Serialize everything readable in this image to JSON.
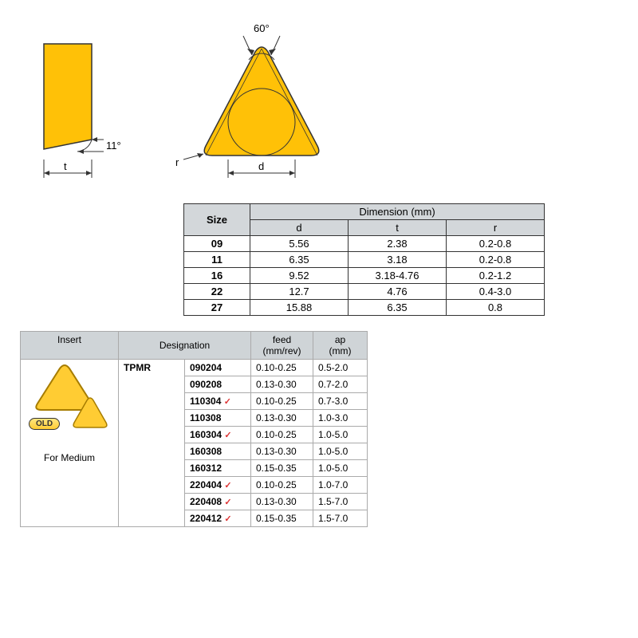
{
  "diagram": {
    "side": {
      "fill": "#ffc107",
      "stroke": "#333",
      "angle_label": "11°",
      "t_label": "t"
    },
    "top": {
      "fill": "#ffc107",
      "stroke": "#333",
      "apex_angle": "60°",
      "r_label": "r",
      "d_label": "d"
    }
  },
  "size_table": {
    "title_size": "Size",
    "title_dim": "Dimension (mm)",
    "cols": [
      "d",
      "t",
      "r"
    ],
    "rows": [
      {
        "size": "09",
        "d": "5.56",
        "t": "2.38",
        "r": "0.2-0.8"
      },
      {
        "size": "11",
        "d": "6.35",
        "t": "3.18",
        "r": "0.2-0.8"
      },
      {
        "size": "16",
        "d": "9.52",
        "t": "3.18-4.76",
        "r": "0.2-1.2"
      },
      {
        "size": "22",
        "d": "12.7",
        "t": "4.76",
        "r": "0.4-3.0"
      },
      {
        "size": "27",
        "d": "15.88",
        "t": "6.35",
        "r": "0.8"
      }
    ]
  },
  "insert_table": {
    "headers": {
      "insert": "Insert",
      "designation": "Designation",
      "feed": "feed\n(mm/rev)",
      "ap": "ap\n(mm)"
    },
    "insert_cell": {
      "old_label": "OLD",
      "caption": "For Medium",
      "triangle_fill": "#ffcc33",
      "triangle_stroke": "#a67c00"
    },
    "series": "TPMR",
    "rows": [
      {
        "code": "090204",
        "check": false,
        "feed": "0.10-0.25",
        "ap": "0.5-2.0"
      },
      {
        "code": "090208",
        "check": false,
        "feed": "0.13-0.30",
        "ap": "0.7-2.0"
      },
      {
        "code": "110304",
        "check": true,
        "feed": "0.10-0.25",
        "ap": "0.7-3.0"
      },
      {
        "code": "110308",
        "check": false,
        "feed": "0.13-0.30",
        "ap": "1.0-3.0"
      },
      {
        "code": "160304",
        "check": true,
        "feed": "0.10-0.25",
        "ap": "1.0-5.0"
      },
      {
        "code": "160308",
        "check": false,
        "feed": "0.13-0.30",
        "ap": "1.0-5.0"
      },
      {
        "code": "160312",
        "check": false,
        "feed": "0.15-0.35",
        "ap": "1.0-5.0"
      },
      {
        "code": "220404",
        "check": true,
        "feed": "0.10-0.25",
        "ap": "1.0-7.0"
      },
      {
        "code": "220408",
        "check": true,
        "feed": "0.13-0.30",
        "ap": "1.5-7.0"
      },
      {
        "code": "220412",
        "check": true,
        "feed": "0.15-0.35",
        "ap": "1.5-7.0"
      }
    ]
  }
}
